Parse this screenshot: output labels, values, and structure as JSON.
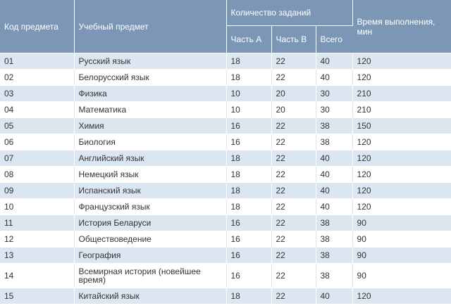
{
  "header": {
    "code": "Код предмета",
    "subject": "Учебный предмет",
    "task_count": "Количество заданий",
    "part_a": "Часть A",
    "part_b": "Часть B",
    "total": "Всего",
    "time": "Время выполнения, мин"
  },
  "rows": [
    {
      "code": "01",
      "subject": "Русский язык",
      "a": "18",
      "b": "22",
      "total": "40",
      "time": "120"
    },
    {
      "code": "02",
      "subject": "Белорусский язык",
      "a": "18",
      "b": "22",
      "total": "40",
      "time": "120"
    },
    {
      "code": "03",
      "subject": "Физика",
      "a": "10",
      "b": "20",
      "total": "30",
      "time": "210"
    },
    {
      "code": "04",
      "subject": "Математика",
      "a": "10",
      "b": "20",
      "total": "30",
      "time": "210"
    },
    {
      "code": "05",
      "subject": "Химия",
      "a": "16",
      "b": "22",
      "total": "38",
      "time": "150"
    },
    {
      "code": "06",
      "subject": "Биология",
      "a": "16",
      "b": "22",
      "total": "38",
      "time": "120"
    },
    {
      "code": "07",
      "subject": "Английский язык",
      "a": "18",
      "b": "22",
      "total": "40",
      "time": "120"
    },
    {
      "code": "08",
      "subject": "Немецкий язык",
      "a": "18",
      "b": "22",
      "total": "40",
      "time": "120"
    },
    {
      "code": "09",
      "subject": "Испанский язык",
      "a": "18",
      "b": "22",
      "total": "40",
      "time": "120"
    },
    {
      "code": "10",
      "subject": "Французский язык",
      "a": "18",
      "b": "22",
      "total": "40",
      "time": "120"
    },
    {
      "code": "11",
      "subject": "История Беларуси",
      "a": "16",
      "b": "22",
      "total": "38",
      "time": "90"
    },
    {
      "code": "12",
      "subject": "Обществоведение",
      "a": "16",
      "b": "22",
      "total": "38",
      "time": "90"
    },
    {
      "code": "13",
      "subject": "География",
      "a": "16",
      "b": "22",
      "total": "38",
      "time": "90"
    },
    {
      "code": "14",
      "subject": "Всемирная история (новейшее время)",
      "a": "16",
      "b": "22",
      "total": "38",
      "time": "90"
    },
    {
      "code": "15",
      "subject": "Китайский язык",
      "a": "18",
      "b": "22",
      "total": "40",
      "time": "120"
    }
  ]
}
